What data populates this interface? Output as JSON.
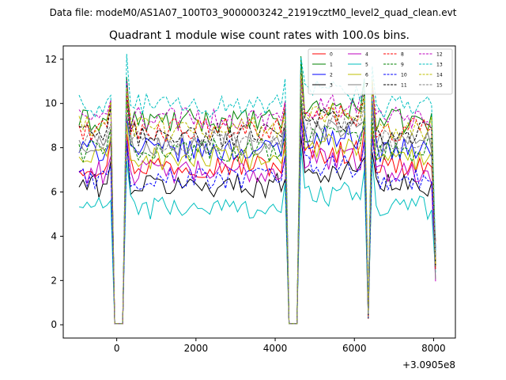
{
  "figure": {
    "suptitle": "Data file: modeM0/AS1A07_100T03_9000003242_21919cztM0_level2_quad_clean.evt"
  },
  "chart_data": {
    "type": "line",
    "title": "Quadrant 1 module wise count rates with 100.0s bins.",
    "xlabel": "",
    "ylabel": "",
    "x_offset_label": "+3.0905e8",
    "xlim": [
      -1350,
      8550
    ],
    "ylim": [
      -0.6,
      12.6
    ],
    "x_ticks": [
      0,
      2000,
      4000,
      6000,
      8000
    ],
    "x_tick_labels": [
      "0",
      "2000",
      "4000",
      "6000",
      "8000"
    ],
    "y_ticks": [
      0,
      2,
      4,
      6,
      8,
      10,
      12
    ],
    "y_tick_labels": [
      "0",
      "2",
      "4",
      "6",
      "8",
      "10",
      "12"
    ],
    "grid": false,
    "legend_position": "top-right",
    "bin_width_s": 100,
    "segments": [
      {
        "start": -950,
        "end": -150
      },
      {
        "start": -50,
        "end": 150
      },
      {
        "start": 250,
        "end": 4250
      },
      {
        "start": 4350,
        "end": 4550
      },
      {
        "start": 4650,
        "end": 6350
      },
      {
        "start": 6450,
        "end": 8050
      }
    ],
    "series": [
      {
        "name": "0",
        "color": "#ff0000",
        "dash": "solid",
        "level": 7.2
      },
      {
        "name": "1",
        "color": "#008000",
        "dash": "solid",
        "level": 9.2
      },
      {
        "name": "2",
        "color": "#0000ff",
        "dash": "solid",
        "level": 7.9
      },
      {
        "name": "3",
        "color": "#000000",
        "dash": "solid",
        "level": 6.3
      },
      {
        "name": "4",
        "color": "#bf00bf",
        "dash": "solid",
        "level": 6.9
      },
      {
        "name": "5",
        "color": "#00bfbf",
        "dash": "solid",
        "level": 5.3
      },
      {
        "name": "6",
        "color": "#bfbf00",
        "dash": "solid",
        "level": 7.5
      },
      {
        "name": "7",
        "color": "#808080",
        "dash": "solid",
        "level": 8.2
      },
      {
        "name": "8",
        "color": "#ff0000",
        "dash": "dashed",
        "level": 8.8
      },
      {
        "name": "9",
        "color": "#008000",
        "dash": "dashed",
        "level": 7.9
      },
      {
        "name": "10",
        "color": "#0000ff",
        "dash": "dashed",
        "level": 6.6
      },
      {
        "name": "11",
        "color": "#000000",
        "dash": "dashed",
        "level": 8.6
      },
      {
        "name": "12",
        "color": "#bf00bf",
        "dash": "dashed",
        "level": 9.3
      },
      {
        "name": "13",
        "color": "#00bfbf",
        "dash": "dashed",
        "level": 9.9
      },
      {
        "name": "14",
        "color": "#bfbf00",
        "dash": "dashed",
        "level": 8.9
      },
      {
        "name": "15",
        "color": "#808080",
        "dash": "dashed",
        "level": 8.3
      }
    ]
  }
}
